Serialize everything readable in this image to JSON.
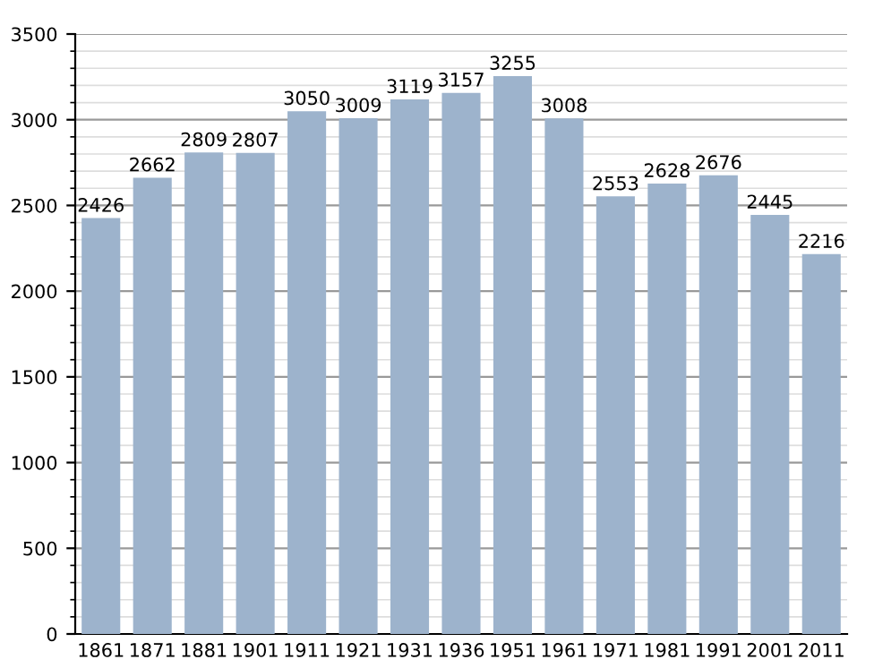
{
  "chart_data": {
    "type": "bar",
    "categories": [
      "1861",
      "1871",
      "1881",
      "1901",
      "1911",
      "1921",
      "1931",
      "1936",
      "1951",
      "1961",
      "1971",
      "1981",
      "1991",
      "2001",
      "2011"
    ],
    "values": [
      2426,
      2662,
      2809,
      2807,
      3050,
      3009,
      3119,
      3157,
      3255,
      3008,
      2553,
      2628,
      2676,
      2445,
      2216
    ],
    "color": "#9db3cc",
    "ylim": [
      0,
      3500
    ],
    "yticks": [
      0,
      500,
      1000,
      1500,
      2000,
      2500,
      3000,
      3500
    ],
    "grid": "y",
    "data_labels": true
  }
}
